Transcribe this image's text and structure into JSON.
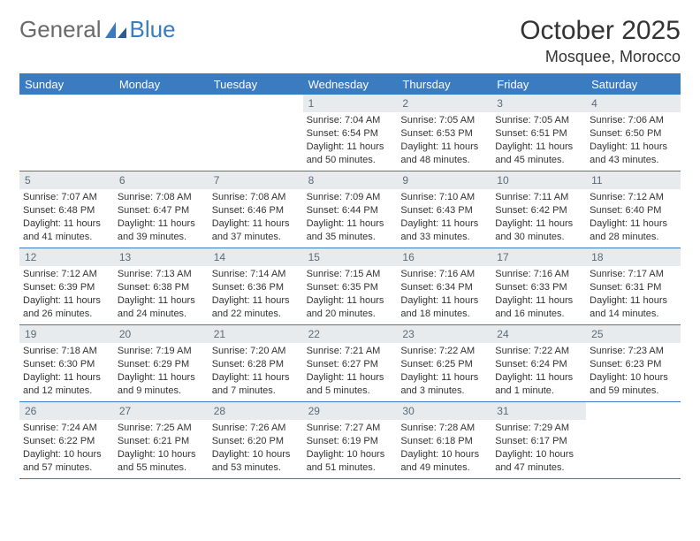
{
  "logo": {
    "text_a": "General",
    "text_b": "Blue"
  },
  "header": {
    "month_title": "October 2025",
    "location": "Mosquee, Morocco"
  },
  "colors": {
    "header_bg": "#3b7bbf",
    "header_text": "#ffffff",
    "daynum_bg": "#e7ebee",
    "daynum_text": "#5c6b78",
    "body_text": "#333333",
    "rule": "#3b7bbf",
    "page_bg": "#ffffff"
  },
  "typography": {
    "body_fontsize_pt": 8,
    "header_fontsize_pt": 10,
    "title_fontsize_pt": 22
  },
  "weekdays": [
    "Sunday",
    "Monday",
    "Tuesday",
    "Wednesday",
    "Thursday",
    "Friday",
    "Saturday"
  ],
  "days": [
    {
      "n": "",
      "sunrise": "",
      "sunset": "",
      "day_a": "",
      "day_b": "",
      "empty": true
    },
    {
      "n": "",
      "sunrise": "",
      "sunset": "",
      "day_a": "",
      "day_b": "",
      "empty": true
    },
    {
      "n": "",
      "sunrise": "",
      "sunset": "",
      "day_a": "",
      "day_b": "",
      "empty": true
    },
    {
      "n": "1",
      "sunrise": "Sunrise: 7:04 AM",
      "sunset": "Sunset: 6:54 PM",
      "day_a": "Daylight: 11 hours",
      "day_b": "and 50 minutes."
    },
    {
      "n": "2",
      "sunrise": "Sunrise: 7:05 AM",
      "sunset": "Sunset: 6:53 PM",
      "day_a": "Daylight: 11 hours",
      "day_b": "and 48 minutes."
    },
    {
      "n": "3",
      "sunrise": "Sunrise: 7:05 AM",
      "sunset": "Sunset: 6:51 PM",
      "day_a": "Daylight: 11 hours",
      "day_b": "and 45 minutes."
    },
    {
      "n": "4",
      "sunrise": "Sunrise: 7:06 AM",
      "sunset": "Sunset: 6:50 PM",
      "day_a": "Daylight: 11 hours",
      "day_b": "and 43 minutes."
    },
    {
      "n": "5",
      "sunrise": "Sunrise: 7:07 AM",
      "sunset": "Sunset: 6:48 PM",
      "day_a": "Daylight: 11 hours",
      "day_b": "and 41 minutes."
    },
    {
      "n": "6",
      "sunrise": "Sunrise: 7:08 AM",
      "sunset": "Sunset: 6:47 PM",
      "day_a": "Daylight: 11 hours",
      "day_b": "and 39 minutes."
    },
    {
      "n": "7",
      "sunrise": "Sunrise: 7:08 AM",
      "sunset": "Sunset: 6:46 PM",
      "day_a": "Daylight: 11 hours",
      "day_b": "and 37 minutes."
    },
    {
      "n": "8",
      "sunrise": "Sunrise: 7:09 AM",
      "sunset": "Sunset: 6:44 PM",
      "day_a": "Daylight: 11 hours",
      "day_b": "and 35 minutes."
    },
    {
      "n": "9",
      "sunrise": "Sunrise: 7:10 AM",
      "sunset": "Sunset: 6:43 PM",
      "day_a": "Daylight: 11 hours",
      "day_b": "and 33 minutes."
    },
    {
      "n": "10",
      "sunrise": "Sunrise: 7:11 AM",
      "sunset": "Sunset: 6:42 PM",
      "day_a": "Daylight: 11 hours",
      "day_b": "and 30 minutes."
    },
    {
      "n": "11",
      "sunrise": "Sunrise: 7:12 AM",
      "sunset": "Sunset: 6:40 PM",
      "day_a": "Daylight: 11 hours",
      "day_b": "and 28 minutes."
    },
    {
      "n": "12",
      "sunrise": "Sunrise: 7:12 AM",
      "sunset": "Sunset: 6:39 PM",
      "day_a": "Daylight: 11 hours",
      "day_b": "and 26 minutes."
    },
    {
      "n": "13",
      "sunrise": "Sunrise: 7:13 AM",
      "sunset": "Sunset: 6:38 PM",
      "day_a": "Daylight: 11 hours",
      "day_b": "and 24 minutes."
    },
    {
      "n": "14",
      "sunrise": "Sunrise: 7:14 AM",
      "sunset": "Sunset: 6:36 PM",
      "day_a": "Daylight: 11 hours",
      "day_b": "and 22 minutes."
    },
    {
      "n": "15",
      "sunrise": "Sunrise: 7:15 AM",
      "sunset": "Sunset: 6:35 PM",
      "day_a": "Daylight: 11 hours",
      "day_b": "and 20 minutes."
    },
    {
      "n": "16",
      "sunrise": "Sunrise: 7:16 AM",
      "sunset": "Sunset: 6:34 PM",
      "day_a": "Daylight: 11 hours",
      "day_b": "and 18 minutes."
    },
    {
      "n": "17",
      "sunrise": "Sunrise: 7:16 AM",
      "sunset": "Sunset: 6:33 PM",
      "day_a": "Daylight: 11 hours",
      "day_b": "and 16 minutes."
    },
    {
      "n": "18",
      "sunrise": "Sunrise: 7:17 AM",
      "sunset": "Sunset: 6:31 PM",
      "day_a": "Daylight: 11 hours",
      "day_b": "and 14 minutes."
    },
    {
      "n": "19",
      "sunrise": "Sunrise: 7:18 AM",
      "sunset": "Sunset: 6:30 PM",
      "day_a": "Daylight: 11 hours",
      "day_b": "and 12 minutes."
    },
    {
      "n": "20",
      "sunrise": "Sunrise: 7:19 AM",
      "sunset": "Sunset: 6:29 PM",
      "day_a": "Daylight: 11 hours",
      "day_b": "and 9 minutes."
    },
    {
      "n": "21",
      "sunrise": "Sunrise: 7:20 AM",
      "sunset": "Sunset: 6:28 PM",
      "day_a": "Daylight: 11 hours",
      "day_b": "and 7 minutes."
    },
    {
      "n": "22",
      "sunrise": "Sunrise: 7:21 AM",
      "sunset": "Sunset: 6:27 PM",
      "day_a": "Daylight: 11 hours",
      "day_b": "and 5 minutes."
    },
    {
      "n": "23",
      "sunrise": "Sunrise: 7:22 AM",
      "sunset": "Sunset: 6:25 PM",
      "day_a": "Daylight: 11 hours",
      "day_b": "and 3 minutes."
    },
    {
      "n": "24",
      "sunrise": "Sunrise: 7:22 AM",
      "sunset": "Sunset: 6:24 PM",
      "day_a": "Daylight: 11 hours",
      "day_b": "and 1 minute."
    },
    {
      "n": "25",
      "sunrise": "Sunrise: 7:23 AM",
      "sunset": "Sunset: 6:23 PM",
      "day_a": "Daylight: 10 hours",
      "day_b": "and 59 minutes."
    },
    {
      "n": "26",
      "sunrise": "Sunrise: 7:24 AM",
      "sunset": "Sunset: 6:22 PM",
      "day_a": "Daylight: 10 hours",
      "day_b": "and 57 minutes."
    },
    {
      "n": "27",
      "sunrise": "Sunrise: 7:25 AM",
      "sunset": "Sunset: 6:21 PM",
      "day_a": "Daylight: 10 hours",
      "day_b": "and 55 minutes."
    },
    {
      "n": "28",
      "sunrise": "Sunrise: 7:26 AM",
      "sunset": "Sunset: 6:20 PM",
      "day_a": "Daylight: 10 hours",
      "day_b": "and 53 minutes."
    },
    {
      "n": "29",
      "sunrise": "Sunrise: 7:27 AM",
      "sunset": "Sunset: 6:19 PM",
      "day_a": "Daylight: 10 hours",
      "day_b": "and 51 minutes."
    },
    {
      "n": "30",
      "sunrise": "Sunrise: 7:28 AM",
      "sunset": "Sunset: 6:18 PM",
      "day_a": "Daylight: 10 hours",
      "day_b": "and 49 minutes."
    },
    {
      "n": "31",
      "sunrise": "Sunrise: 7:29 AM",
      "sunset": "Sunset: 6:17 PM",
      "day_a": "Daylight: 10 hours",
      "day_b": "and 47 minutes."
    },
    {
      "n": "",
      "sunrise": "",
      "sunset": "",
      "day_a": "",
      "day_b": "",
      "empty": true
    }
  ]
}
